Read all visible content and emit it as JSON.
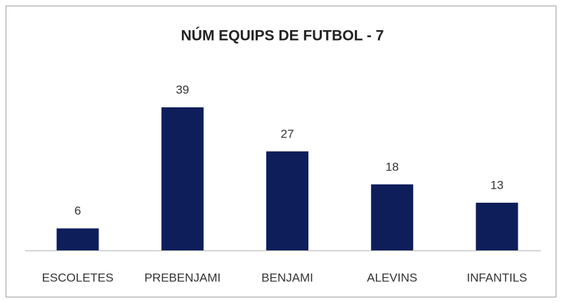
{
  "chart_data": {
    "type": "bar",
    "title": "NÚM EQUIPS DE FUTBOL - 7",
    "categories": [
      "ESCOLETES",
      "PREBENJAMI",
      "BENJAMI",
      "ALEVINS",
      "INFANTILS"
    ],
    "values": [
      6,
      39,
      27,
      18,
      13
    ],
    "color": "#0e1e5b"
  }
}
